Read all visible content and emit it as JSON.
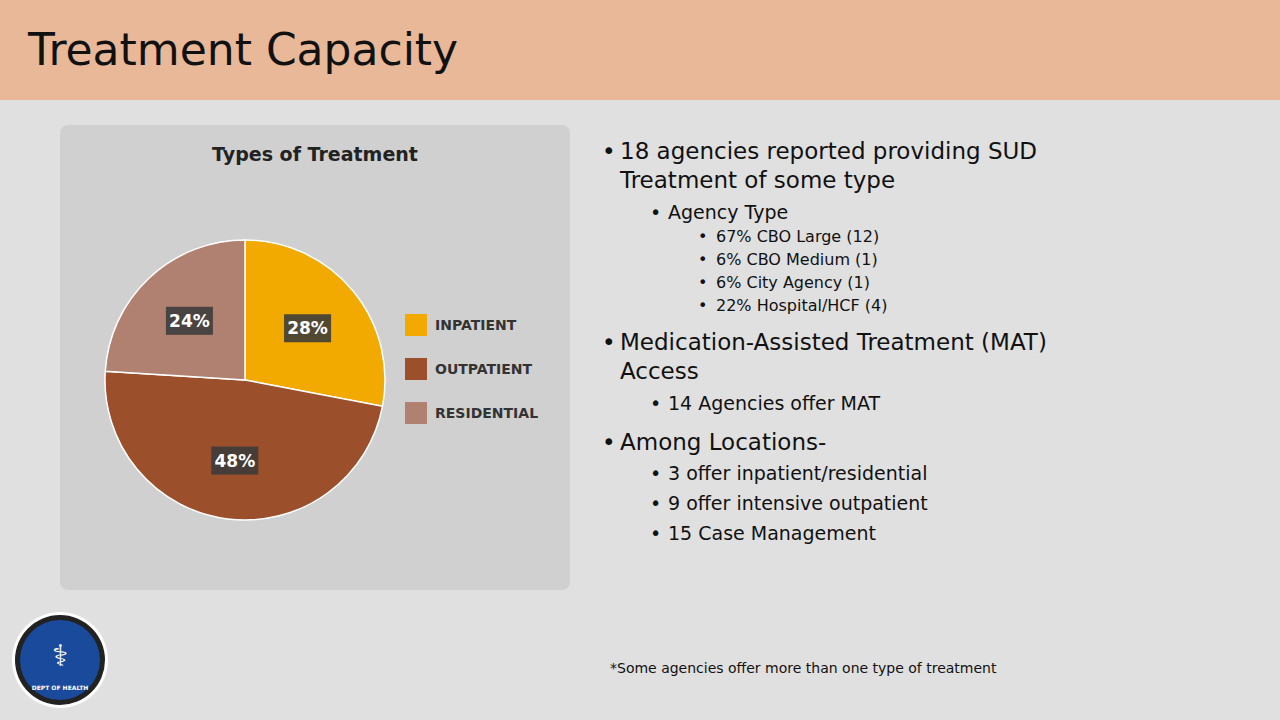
{
  "title": "Treatment Capacity",
  "logo": {
    "symbol": "⚕",
    "text": "DEPT OF HEALTH"
  },
  "footnote": "*Some agencies offer more than one type of treatment",
  "annotations": [
    {
      "text": "18 agencies reported providing SUD\nTreatment of some type",
      "level": 0
    },
    {
      "text": "Agency Type",
      "level": 1
    },
    {
      "text": "67% CBO Large (12)",
      "level": 2
    },
    {
      "text": "6% CBO Medium  (1)",
      "level": 2
    },
    {
      "text": "6% City Agency (1)",
      "level": 2
    },
    {
      "text": "22% Hospital/HCF (4)",
      "level": 2
    },
    {
      "text": "Medication-Assisted Treatment (MAT)\nAccess",
      "level": 0
    },
    {
      "text": "14 Agencies offer MAT",
      "level": 1
    },
    {
      "text": "Among Locations-",
      "level": 0
    },
    {
      "text": "3 offer inpatient/residential",
      "level": 1
    },
    {
      "text": "9 offer intensive outpatient",
      "level": 1
    },
    {
      "text": "15 Case Management",
      "level": 1
    }
  ],
  "chart_data": {
    "type": "pie",
    "title": "Types of Treatment",
    "categories": [
      "INPATIENT",
      "OUTPATIENT",
      "RESIDENTIAL"
    ],
    "values": [
      28,
      48,
      24
    ],
    "value_labels": [
      "28%",
      "48%",
      "24%"
    ],
    "colors": [
      "#F2A900",
      "#9B4F2A",
      "#B08070"
    ],
    "data_labels": true,
    "legend": "right"
  }
}
